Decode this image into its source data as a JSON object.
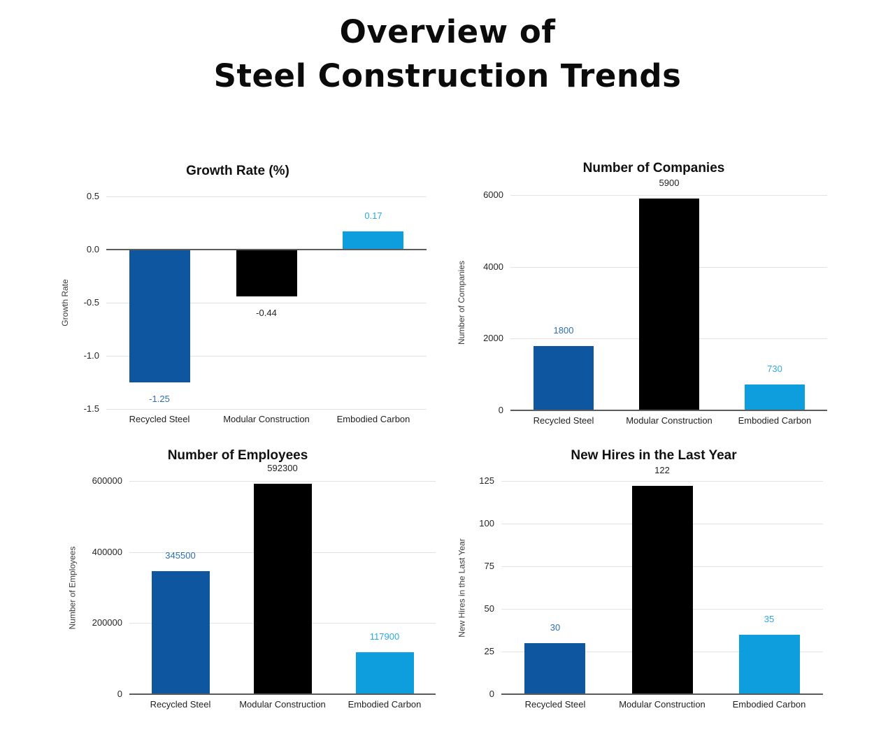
{
  "page": {
    "title_line1": "Overview of",
    "title_line2": "Steel Construction Trends"
  },
  "palette": {
    "dark_blue": "#0e56a0",
    "black": "#000000",
    "light_blue": "#0f9edd",
    "dark_blue_label": "#2e6fb3",
    "black_label": "#222222",
    "light_blue_label": "#2fa7e0",
    "gridline": "#e2e2e2",
    "axis_line": "#5c5c5c"
  },
  "chart_data": [
    {
      "type": "bar",
      "title": "Growth Rate (%)",
      "xlabel": "",
      "ylabel": "Growth Rate",
      "categories": [
        "Recycled Steel",
        "Modular Construction",
        "Embodied Carbon"
      ],
      "values": [
        -1.25,
        -0.44,
        0.17
      ],
      "value_labels": [
        "-1.25",
        "-0.44",
        "0.17"
      ],
      "bar_colors": [
        "#0e56a0",
        "#000000",
        "#0f9edd"
      ],
      "value_label_colors": [
        "#2e6fb3",
        "#222222",
        "#2fa7e0"
      ],
      "ylim": [
        -1.5,
        0.5
      ],
      "yticks": [
        0.5,
        0,
        -0.5,
        -1,
        -1.5
      ],
      "ytick_labels": [
        "0.5",
        "0.0",
        "-0.5",
        "-1.0",
        "-1.5"
      ],
      "grid": true,
      "legend": "none"
    },
    {
      "type": "bar",
      "title": "Number of Companies",
      "xlabel": "",
      "ylabel": "Number of Companies",
      "categories": [
        "Recycled Steel",
        "Modular Construction",
        "Embodied Carbon"
      ],
      "values": [
        1800,
        5900,
        730
      ],
      "value_labels": [
        "1800",
        "5900",
        "730"
      ],
      "bar_colors": [
        "#0e56a0",
        "#000000",
        "#0f9edd"
      ],
      "value_label_colors": [
        "#2e6fb3",
        "#222222",
        "#2fa7e0"
      ],
      "ylim": [
        0,
        6000
      ],
      "yticks": [
        6000,
        4000,
        2000,
        0
      ],
      "ytick_labels": [
        "6000",
        "4000",
        "2000",
        "0"
      ],
      "grid": true,
      "legend": "none"
    },
    {
      "type": "bar",
      "title": "Number of Employees",
      "xlabel": "",
      "ylabel": "Number of Employees",
      "categories": [
        "Recycled Steel",
        "Modular Construction",
        "Embodied Carbon"
      ],
      "values": [
        345500,
        592300,
        117900
      ],
      "value_labels": [
        "345500",
        "592300",
        "117900"
      ],
      "bar_colors": [
        "#0e56a0",
        "#000000",
        "#0f9edd"
      ],
      "value_label_colors": [
        "#2e6fb3",
        "#222222",
        "#2fa7e0"
      ],
      "ylim": [
        0,
        600000
      ],
      "yticks": [
        600000,
        400000,
        200000,
        0
      ],
      "ytick_labels": [
        "600000",
        "400000",
        "200000",
        "0"
      ],
      "grid": true,
      "legend": "none"
    },
    {
      "type": "bar",
      "title": "New Hires in the Last Year",
      "xlabel": "",
      "ylabel": "New Hires in the Last Year",
      "categories": [
        "Recycled Steel",
        "Modular Construction",
        "Embodied Carbon"
      ],
      "values": [
        30,
        122,
        35
      ],
      "value_labels": [
        "30",
        "122",
        "35"
      ],
      "bar_colors": [
        "#0e56a0",
        "#000000",
        "#0f9edd"
      ],
      "value_label_colors": [
        "#2e6fb3",
        "#222222",
        "#2fa7e0"
      ],
      "ylim": [
        0,
        125
      ],
      "yticks": [
        125,
        100,
        75,
        50,
        25,
        0
      ],
      "ytick_labels": [
        "125",
        "100",
        "75",
        "50",
        "25",
        "0"
      ],
      "grid": true,
      "legend": "none"
    }
  ]
}
